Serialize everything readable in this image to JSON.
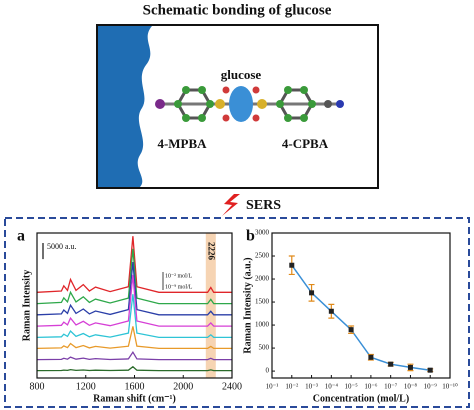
{
  "schematic": {
    "title": "Schematic bonding of glucose",
    "center_label": "glucose",
    "left_label": "4-MPBA",
    "right_label": "4-CPBA",
    "arrow_label": "SERS"
  },
  "chart_data": [
    {
      "type": "line",
      "panel": "a",
      "xlabel": "Raman shift (cm⁻¹)",
      "ylabel": "Raman Intensity",
      "xlim": [
        800,
        2400
      ],
      "xticks": [
        800,
        1200,
        1600,
        2000,
        2400
      ],
      "ylim": [
        0,
        45000
      ],
      "scale_bar": {
        "value": 5000,
        "label": "5000 a.u."
      },
      "highlight": 2226,
      "conc_high": "10⁻² mol/L",
      "conc_low": "10⁻⁹ mol/L",
      "x": [
        800,
        1000,
        1020,
        1050,
        1075,
        1120,
        1180,
        1230,
        1280,
        1400,
        1550,
        1587,
        1620,
        1800,
        2100,
        2200,
        2226,
        2250,
        2400
      ],
      "series": [
        {
          "color": "#e0262a",
          "values": [
            26600,
            27000,
            28600,
            27200,
            30600,
            27200,
            29000,
            27000,
            28200,
            26800,
            28340,
            44000,
            28340,
            26600,
            26600,
            26600,
            28100,
            26600,
            26600
          ]
        },
        {
          "color": "#2ea84a",
          "values": [
            23100,
            23450,
            24850,
            23625,
            26600,
            23625,
            25200,
            23450,
            24500,
            23275,
            24800,
            40100,
            24800,
            23100,
            23100,
            23100,
            24400,
            23100,
            23100
          ]
        },
        {
          "color": "#2b3fa8",
          "values": [
            19600,
            19900,
            21100,
            20050,
            22600,
            20050,
            21400,
            19900,
            20800,
            19750,
            21240,
            36000,
            21240,
            19600,
            19600,
            19600,
            20700,
            19600,
            19600
          ]
        },
        {
          "color": "#d63fd6",
          "values": [
            16100,
            16350,
            17350,
            16475,
            18600,
            16475,
            17600,
            16350,
            17100,
            16225,
            17690,
            32000,
            17690,
            16100,
            16100,
            16100,
            17100,
            16100,
            16100
          ]
        },
        {
          "color": "#2ec4d6",
          "values": [
            12600,
            12800,
            13600,
            12900,
            14600,
            12900,
            13800,
            12800,
            13400,
            12700,
            13940,
            26000,
            13940,
            12600,
            12600,
            12600,
            13400,
            12600,
            12600
          ]
        },
        {
          "color": "#e89a2a",
          "values": [
            9200,
            9350,
            9950,
            9425,
            10700,
            9425,
            10100,
            9350,
            9800,
            9275,
            9880,
            16000,
            9880,
            9200,
            9200,
            9200,
            9800,
            9200,
            9200
          ]
        },
        {
          "color": "#7b3fa8",
          "values": [
            5700,
            5780,
            6100,
            5820,
            6500,
            5820,
            6180,
            5780,
            6020,
            5740,
            5930,
            8000,
            5930,
            5700,
            5700,
            5700,
            6100,
            5700,
            5700
          ]
        },
        {
          "color": "#2a6b2a",
          "values": [
            2300,
            2330,
            2450,
            2345,
            2600,
            2345,
            2480,
            2330,
            2420,
            2315,
            2420,
            3500,
            2420,
            2300,
            2300,
            2300,
            2500,
            2300,
            2300
          ]
        }
      ]
    },
    {
      "type": "scatter",
      "panel": "b",
      "xlabel": "Concentration (mol/L)",
      "ylabel": "Raman Intensity (a.u.)",
      "log_x": true,
      "xlim": [
        0.1,
        1e-10
      ],
      "xticks": [
        {
          "value": 0.1,
          "label": "10⁻¹"
        },
        {
          "value": 0.01,
          "label": "10⁻²"
        },
        {
          "value": 0.001,
          "label": "10⁻³"
        },
        {
          "value": 0.0001,
          "label": "10⁻⁴"
        },
        {
          "value": 1e-05,
          "label": "10⁻⁵"
        },
        {
          "value": 1e-06,
          "label": "10⁻⁶"
        },
        {
          "value": 1e-07,
          "label": "10⁻⁷"
        },
        {
          "value": 1e-08,
          "label": "10⁻⁸"
        },
        {
          "value": 1e-09,
          "label": "10⁻⁹"
        },
        {
          "value": 1e-10,
          "label": "10⁻¹⁰"
        }
      ],
      "ylim": [
        -150,
        3000
      ],
      "yticks": [
        0,
        500,
        1000,
        1500,
        2000,
        2500,
        3000
      ],
      "x": [
        0.01,
        0.001,
        0.0001,
        1e-05,
        1e-06,
        1e-07,
        1e-08,
        1e-09
      ],
      "values": [
        2300,
        1700,
        1300,
        900,
        300,
        150,
        80,
        20
      ],
      "errors": [
        200,
        180,
        150,
        80,
        60,
        40,
        70,
        30
      ],
      "line_color": "#3a8fd6",
      "marker_color": "#222222",
      "error_color": "#e08a1a"
    }
  ]
}
